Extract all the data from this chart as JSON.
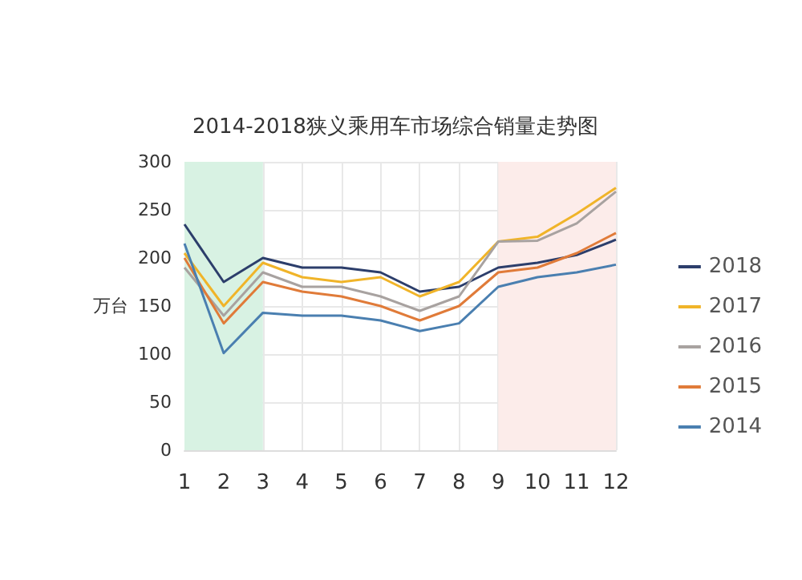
{
  "chart_data": {
    "type": "line",
    "title": "2014-2018狭义乘用车市场综合销量走势图",
    "ylabel": "万台",
    "x": [
      1,
      2,
      3,
      4,
      5,
      6,
      7,
      8,
      9,
      10,
      11,
      12
    ],
    "xlim": [
      1,
      12
    ],
    "xticks": [
      1,
      2,
      3,
      4,
      5,
      6,
      7,
      8,
      9,
      10,
      11,
      12
    ],
    "ylim": [
      0,
      300
    ],
    "yticks": [
      0,
      50,
      100,
      150,
      200,
      250,
      300
    ],
    "series": [
      {
        "name": "2018",
        "color": "#2c3e6b",
        "values": [
          235,
          175,
          200,
          190,
          190,
          185,
          165,
          170,
          190,
          195,
          203,
          219
        ]
      },
      {
        "name": "2017",
        "color": "#f0b429",
        "values": [
          205,
          150,
          195,
          180,
          175,
          180,
          160,
          175,
          217,
          222,
          246,
          273
        ]
      },
      {
        "name": "2016",
        "color": "#a8a2a0",
        "values": [
          190,
          140,
          185,
          170,
          170,
          160,
          145,
          160,
          217,
          218,
          236,
          269
        ]
      },
      {
        "name": "2015",
        "color": "#e07b39",
        "values": [
          200,
          132,
          175,
          165,
          160,
          150,
          135,
          150,
          185,
          190,
          205,
          226
        ]
      },
      {
        "name": "2014",
        "color": "#4a7fb0",
        "values": [
          215,
          101,
          143,
          140,
          140,
          135,
          124,
          132,
          170,
          180,
          185,
          193
        ]
      }
    ],
    "bands": [
      {
        "axis": "x",
        "from": 1,
        "to": 3,
        "color": "#d8f2e3"
      },
      {
        "axis": "x",
        "from": 9,
        "to": 12,
        "color": "#fcecea"
      }
    ],
    "grid": true,
    "legend": "right",
    "marker": "none",
    "line_style": "solid"
  }
}
